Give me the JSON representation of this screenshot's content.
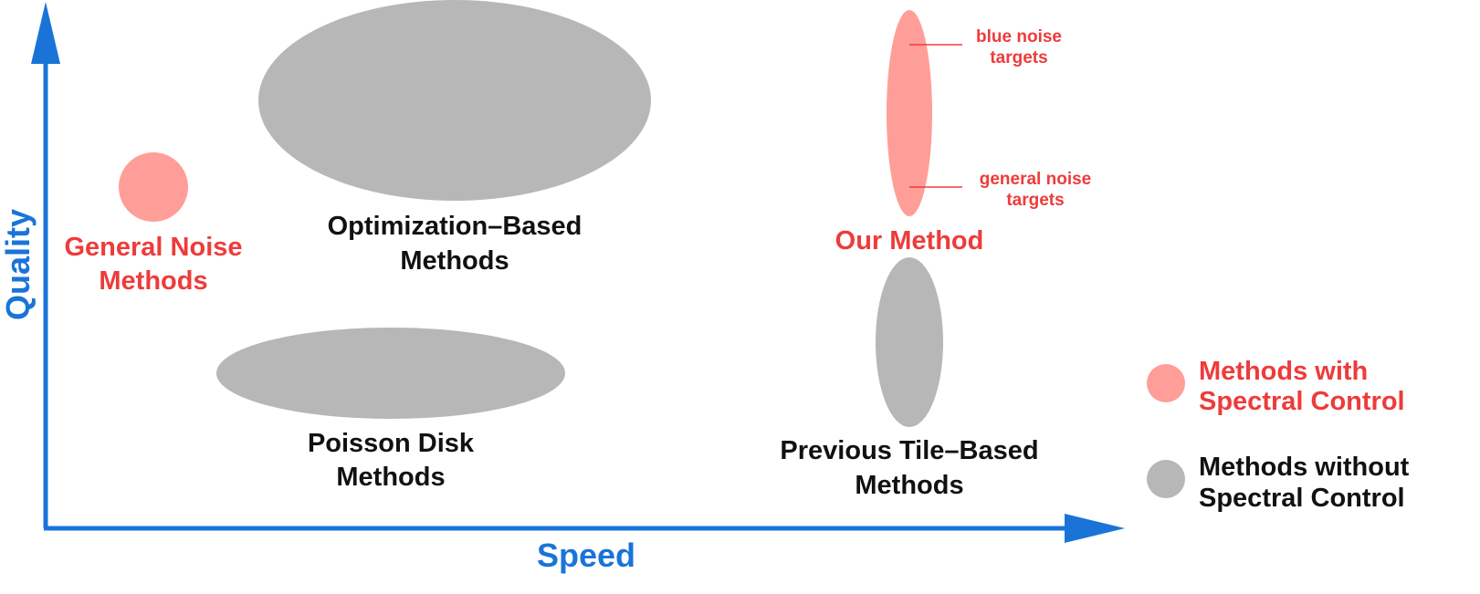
{
  "axes": {
    "x_label": "Speed",
    "y_label": "Quality",
    "color": "#1A74D8"
  },
  "colors": {
    "with_spectral": "#FF9E98",
    "without_spectral": "#B7B7B7",
    "red_text": "#EE3B3B",
    "black_text": "#111111"
  },
  "groups": {
    "general_noise": {
      "line1": "General Noise",
      "line2": "Methods",
      "kind": "with_spectral"
    },
    "optimization": {
      "line1": "Optimization–Based",
      "line2": "Methods",
      "kind": "without_spectral"
    },
    "poisson": {
      "line1": "Poisson Disk",
      "line2": "Methods",
      "kind": "without_spectral"
    },
    "our_method": {
      "line1": "Our Method",
      "kind": "with_spectral"
    },
    "previous_tile": {
      "line1": "Previous Tile–Based",
      "line2": "Methods",
      "kind": "without_spectral"
    }
  },
  "annotations": {
    "blue_noise": {
      "line1": "blue noise",
      "line2": "targets"
    },
    "general_noise": {
      "line1": "general noise",
      "line2": "targets"
    }
  },
  "legend": {
    "with": {
      "line1": "Methods with",
      "line2": "Spectral Control"
    },
    "without": {
      "line1": "Methods without",
      "line2": "Spectral Control"
    }
  }
}
